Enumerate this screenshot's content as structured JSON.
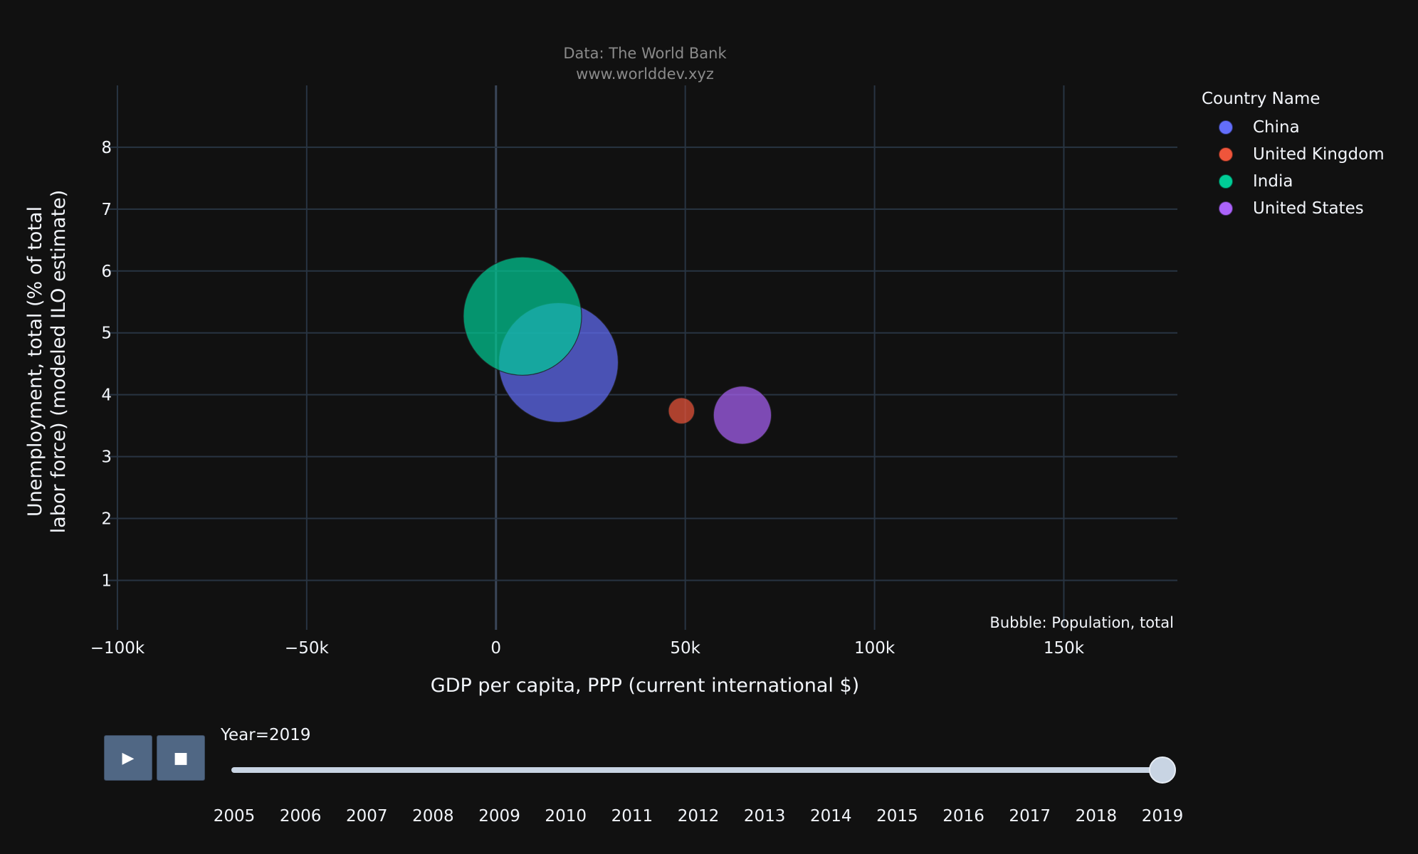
{
  "chart_data": {
    "type": "scatter",
    "annotation_top": [
      "Data: The World Bank",
      "www.worlddev.xyz"
    ],
    "xlabel": "GDP per capita, PPP (current international $)",
    "ylabel": [
      "Unemployment, total (% of total",
      "labor force) (modeled ILO estimate)"
    ],
    "xlim": [
      -103000,
      180000
    ],
    "ylim": [
      0.2,
      9.0
    ],
    "x_ticks": [
      -100000,
      -50000,
      0,
      50000,
      100000,
      150000
    ],
    "x_tick_labels": [
      "−100k",
      "−50k",
      "0",
      "50k",
      "100k",
      "150k"
    ],
    "y_ticks": [
      1,
      2,
      3,
      4,
      5,
      6,
      7,
      8
    ],
    "y_tick_labels": [
      "1",
      "2",
      "3",
      "4",
      "5",
      "6",
      "7",
      "8"
    ],
    "bubble_note": "Bubble: Population, total",
    "legend_title": "Country Name",
    "legend_position": "top-right",
    "grid": true,
    "series": [
      {
        "name": "China",
        "color": "#636efa",
        "x": 16500,
        "y": 4.52,
        "population": 1397715000
      },
      {
        "name": "United Kingdom",
        "color": "#ef553b",
        "x": 49000,
        "y": 3.74,
        "population": 66834000
      },
      {
        "name": "India",
        "color": "#00cc96",
        "x": 7000,
        "y": 5.27,
        "population": 1366418000
      },
      {
        "name": "United States",
        "color": "#ab63fa",
        "x": 65100,
        "y": 3.67,
        "population": 328240000
      }
    ]
  },
  "slider": {
    "label": "Year=2019",
    "current": "2019",
    "years": [
      "2005",
      "2006",
      "2007",
      "2008",
      "2009",
      "2010",
      "2011",
      "2012",
      "2013",
      "2014",
      "2015",
      "2016",
      "2017",
      "2018",
      "2019"
    ]
  },
  "controls": {
    "play_icon": "play-icon",
    "stop_icon": "stop-icon"
  },
  "colors": {
    "background": "#111111",
    "grid": "#283442",
    "text": "#f2f5fa",
    "button": "#506784",
    "slider": "#c8d4e3"
  }
}
